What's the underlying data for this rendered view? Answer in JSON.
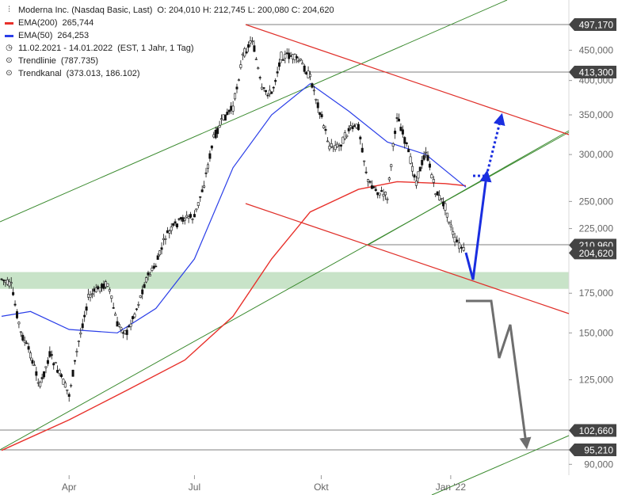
{
  "legend": {
    "title": "Moderna Inc. (Nasdaq Basic, Last)",
    "ohlc": "O: 204,010  H: 212,745  L: 200,080  C: 204,620",
    "ema200_label": "EMA(200)",
    "ema200_value": "265,744",
    "ema50_label": "EMA(50)",
    "ema50_value": "264,253",
    "range_label": "11.02.2021 - 14.01.2022",
    "range_detail": "(EST, 1 Jahr, 1 Tag)",
    "trendline_label": "Trendlinie",
    "trendline_value": "(787.735)",
    "trendkanal_label": "Trendkanal",
    "trendkanal_value": "(373.013, 186.102)"
  },
  "colors": {
    "ema200": "#e8302a",
    "ema50": "#2a3ee8",
    "trend_green": "#3a8a2e",
    "channel_red": "#e0302a",
    "support_zone": "#c8e3c8",
    "projection_blue": "#1a2ee0",
    "projection_gray": "#6e6e6e",
    "tag_bg": "#444444",
    "candle": "#111111"
  },
  "chart_data": {
    "type": "candlestick",
    "symbol": "Moderna Inc.",
    "scale": "log",
    "ylim": [
      85,
      640
    ],
    "y_ticks": [
      {
        "label": "450,000",
        "value": 450
      },
      {
        "label": "400,000",
        "value": 400
      },
      {
        "label": "350,000",
        "value": 350
      },
      {
        "label": "300,000",
        "value": 300
      },
      {
        "label": "250,000",
        "value": 250
      },
      {
        "label": "225,000",
        "value": 225
      },
      {
        "label": "175,000",
        "value": 175
      },
      {
        "label": "150,000",
        "value": 150
      },
      {
        "label": "125,000",
        "value": 125
      },
      {
        "label": "90,000",
        "value": 90
      }
    ],
    "x_ticks": [
      "Apr",
      "Jul",
      "Okt",
      "Jan '22"
    ],
    "x_range": [
      "2021-02-11",
      "2022-01-14"
    ],
    "price_tags": [
      {
        "label": "497,170",
        "value": 497.17
      },
      {
        "label": "413,300",
        "value": 413.3
      },
      {
        "label": "210,960",
        "value": 210.96
      },
      {
        "label": "204,620",
        "value": 204.62
      },
      {
        "label": "102,660",
        "value": 102.66
      },
      {
        "label": "95,210",
        "value": 95.21
      }
    ],
    "support_zone": [
      178,
      190
    ],
    "closes": [
      {
        "date": "2021-02-11",
        "close": 185
      },
      {
        "date": "2021-02-18",
        "close": 180
      },
      {
        "date": "2021-02-25",
        "close": 150
      },
      {
        "date": "2021-03-04",
        "close": 138
      },
      {
        "date": "2021-03-11",
        "close": 122
      },
      {
        "date": "2021-03-18",
        "close": 138
      },
      {
        "date": "2021-03-25",
        "close": 128
      },
      {
        "date": "2021-04-01",
        "close": 118
      },
      {
        "date": "2021-04-08",
        "close": 145
      },
      {
        "date": "2021-04-15",
        "close": 172
      },
      {
        "date": "2021-04-22",
        "close": 178
      },
      {
        "date": "2021-04-29",
        "close": 182
      },
      {
        "date": "2021-05-06",
        "close": 155
      },
      {
        "date": "2021-05-13",
        "close": 150
      },
      {
        "date": "2021-05-20",
        "close": 165
      },
      {
        "date": "2021-05-27",
        "close": 185
      },
      {
        "date": "2021-06-03",
        "close": 195
      },
      {
        "date": "2021-06-10",
        "close": 218
      },
      {
        "date": "2021-06-17",
        "close": 228
      },
      {
        "date": "2021-06-24",
        "close": 235
      },
      {
        "date": "2021-07-01",
        "close": 235
      },
      {
        "date": "2021-07-08",
        "close": 268
      },
      {
        "date": "2021-07-15",
        "close": 320
      },
      {
        "date": "2021-07-22",
        "close": 345
      },
      {
        "date": "2021-07-29",
        "close": 360
      },
      {
        "date": "2021-08-05",
        "close": 440
      },
      {
        "date": "2021-08-12",
        "close": 470
      },
      {
        "date": "2021-08-19",
        "close": 385
      },
      {
        "date": "2021-08-26",
        "close": 380
      },
      {
        "date": "2021-09-02",
        "close": 440
      },
      {
        "date": "2021-09-09",
        "close": 440
      },
      {
        "date": "2021-09-16",
        "close": 430
      },
      {
        "date": "2021-09-23",
        "close": 405
      },
      {
        "date": "2021-09-30",
        "close": 355
      },
      {
        "date": "2021-10-07",
        "close": 310
      },
      {
        "date": "2021-10-14",
        "close": 310
      },
      {
        "date": "2021-10-21",
        "close": 330
      },
      {
        "date": "2021-10-28",
        "close": 335
      },
      {
        "date": "2021-11-04",
        "close": 270
      },
      {
        "date": "2021-11-11",
        "close": 260
      },
      {
        "date": "2021-11-18",
        "close": 255
      },
      {
        "date": "2021-11-25",
        "close": 350
      },
      {
        "date": "2021-12-02",
        "close": 310
      },
      {
        "date": "2021-12-09",
        "close": 270
      },
      {
        "date": "2021-12-16",
        "close": 305
      },
      {
        "date": "2021-12-23",
        "close": 260
      },
      {
        "date": "2021-12-30",
        "close": 245
      },
      {
        "date": "2022-01-06",
        "close": 215
      },
      {
        "date": "2022-01-14",
        "close": 204.62
      }
    ],
    "ema200_values": [
      {
        "date": "2021-02-11",
        "value": 95
      },
      {
        "date": "2021-04-01",
        "value": 107
      },
      {
        "date": "2021-05-13",
        "value": 120
      },
      {
        "date": "2021-06-24",
        "value": 135
      },
      {
        "date": "2021-07-29",
        "value": 160
      },
      {
        "date": "2021-08-26",
        "value": 200
      },
      {
        "date": "2021-09-23",
        "value": 240
      },
      {
        "date": "2021-10-28",
        "value": 262
      },
      {
        "date": "2021-11-25",
        "value": 270
      },
      {
        "date": "2021-12-30",
        "value": 268
      },
      {
        "date": "2022-01-14",
        "value": 265.744
      }
    ],
    "ema50_values": [
      {
        "date": "2021-02-11",
        "value": 160
      },
      {
        "date": "2021-03-04",
        "value": 163
      },
      {
        "date": "2021-04-01",
        "value": 152
      },
      {
        "date": "2021-05-06",
        "value": 150
      },
      {
        "date": "2021-06-03",
        "value": 165
      },
      {
        "date": "2021-07-01",
        "value": 200
      },
      {
        "date": "2021-07-29",
        "value": 285
      },
      {
        "date": "2021-08-26",
        "value": 350
      },
      {
        "date": "2021-09-23",
        "value": 395
      },
      {
        "date": "2021-10-21",
        "value": 355
      },
      {
        "date": "2021-11-18",
        "value": 315
      },
      {
        "date": "2021-12-16",
        "value": 300
      },
      {
        "date": "2022-01-14",
        "value": 264.253
      }
    ]
  }
}
